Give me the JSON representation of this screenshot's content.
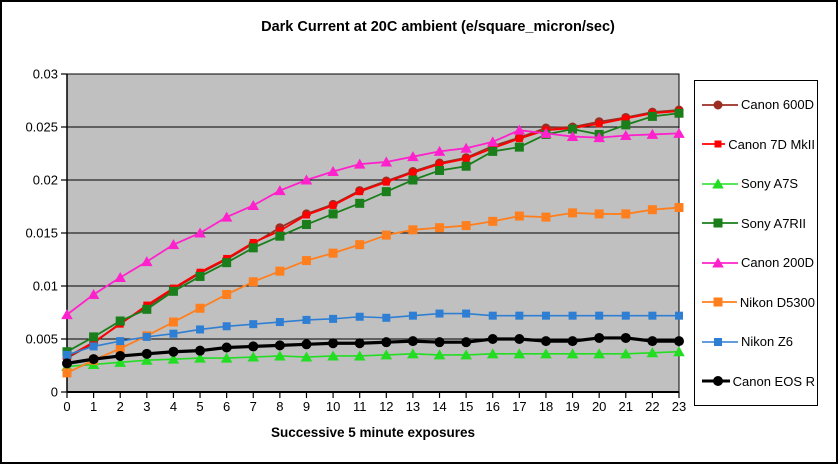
{
  "chart_data": {
    "type": "line",
    "title": "Dark Current at 20C ambient (e/square_micron/sec)",
    "xlabel": "Successive 5 minute exposures",
    "ylabel": "",
    "x": [
      0,
      1,
      2,
      3,
      4,
      5,
      6,
      7,
      8,
      9,
      10,
      11,
      12,
      13,
      14,
      15,
      16,
      17,
      18,
      19,
      20,
      21,
      22,
      23
    ],
    "ylim": [
      0,
      0.03
    ],
    "yticks": [
      0,
      0.005,
      0.01,
      0.015,
      0.02,
      0.025,
      0.03
    ],
    "ytick_labels": [
      "0",
      "0.005",
      "0.01",
      "0.015",
      "0.02",
      "0.025",
      "0.03"
    ],
    "grid": "horizontal",
    "legend_position": "right",
    "plot_bg_color": "#C0C0C0",
    "axis_color": "#000000",
    "series": [
      {
        "name": "Canon 600D",
        "color": "#9B2D23",
        "marker": "circle",
        "marker_size": 9,
        "line_width": 1.8,
        "values": [
          0.0032,
          0.0046,
          0.0065,
          0.008,
          0.0097,
          0.0112,
          0.0125,
          0.014,
          0.0155,
          0.0168,
          0.0177,
          0.019,
          0.0199,
          0.0208,
          0.0216,
          0.0221,
          0.0232,
          0.024,
          0.0249,
          0.025,
          0.0255,
          0.0259,
          0.0264,
          0.0266
        ]
      },
      {
        "name": "Canon 7D MkII",
        "color": "#FF0000",
        "marker": "square",
        "marker_size": 7,
        "line_width": 1.8,
        "values": [
          0.0033,
          0.0047,
          0.0064,
          0.0082,
          0.0098,
          0.0113,
          0.0126,
          0.0141,
          0.0152,
          0.0167,
          0.0176,
          0.0189,
          0.0198,
          0.0207,
          0.0215,
          0.022,
          0.023,
          0.0239,
          0.0247,
          0.0249,
          0.0253,
          0.0258,
          0.0263,
          0.0265
        ]
      },
      {
        "name": "Sony A7S",
        "color": "#22DD22",
        "marker": "triangle",
        "marker_size": 10,
        "line_width": 1.6,
        "values": [
          0.0024,
          0.0026,
          0.0028,
          0.003,
          0.0031,
          0.0032,
          0.0032,
          0.0033,
          0.0034,
          0.0033,
          0.0034,
          0.0034,
          0.0035,
          0.0036,
          0.0035,
          0.0035,
          0.0036,
          0.0036,
          0.0036,
          0.0036,
          0.0036,
          0.0036,
          0.0037,
          0.0038
        ]
      },
      {
        "name": "Sony A7RII",
        "color": "#1A7E1A",
        "marker": "square",
        "marker_size": 9,
        "line_width": 1.8,
        "values": [
          0.0038,
          0.0052,
          0.0067,
          0.0078,
          0.0095,
          0.0109,
          0.0122,
          0.0136,
          0.0147,
          0.0158,
          0.0168,
          0.0178,
          0.0189,
          0.02,
          0.0209,
          0.0213,
          0.0227,
          0.0231,
          0.0243,
          0.0248,
          0.0243,
          0.0252,
          0.026,
          0.0263
        ]
      },
      {
        "name": "Canon 200D",
        "color": "#FF22CC",
        "marker": "triangle",
        "marker_size": 10,
        "line_width": 1.8,
        "values": [
          0.0073,
          0.0092,
          0.0108,
          0.0123,
          0.0139,
          0.015,
          0.0165,
          0.0176,
          0.019,
          0.02,
          0.0208,
          0.0215,
          0.0217,
          0.0222,
          0.0227,
          0.023,
          0.0236,
          0.0247,
          0.0244,
          0.0241,
          0.024,
          0.0242,
          0.0243,
          0.0244
        ]
      },
      {
        "name": "Nikon D5300",
        "color": "#FF7F1E",
        "marker": "square",
        "marker_size": 9,
        "line_width": 1.8,
        "values": [
          0.0018,
          0.003,
          0.0041,
          0.0053,
          0.0066,
          0.0079,
          0.0092,
          0.0104,
          0.0114,
          0.0124,
          0.0131,
          0.0139,
          0.0148,
          0.0153,
          0.0155,
          0.0157,
          0.0161,
          0.0166,
          0.0165,
          0.0169,
          0.0168,
          0.0168,
          0.0172,
          0.0174
        ]
      },
      {
        "name": "Nikon Z6",
        "color": "#2E7FD4",
        "marker": "square",
        "marker_size": 8,
        "line_width": 1.6,
        "values": [
          0.0035,
          0.0043,
          0.0048,
          0.0052,
          0.0055,
          0.0059,
          0.0062,
          0.0064,
          0.0066,
          0.0068,
          0.0069,
          0.0071,
          0.007,
          0.0072,
          0.0074,
          0.0074,
          0.0072,
          0.0072,
          0.0072,
          0.0072,
          0.0072,
          0.0072,
          0.0072,
          0.0072
        ]
      },
      {
        "name": "Canon EOS R",
        "color": "#000000",
        "marker": "circle",
        "marker_size": 10,
        "line_width": 3.2,
        "values": [
          0.0027,
          0.0031,
          0.0034,
          0.0036,
          0.0038,
          0.0039,
          0.0042,
          0.0043,
          0.0044,
          0.0045,
          0.0046,
          0.0046,
          0.0047,
          0.0048,
          0.0047,
          0.0047,
          0.005,
          0.005,
          0.0048,
          0.0048,
          0.0051,
          0.0051,
          0.0048,
          0.0048
        ]
      }
    ]
  }
}
